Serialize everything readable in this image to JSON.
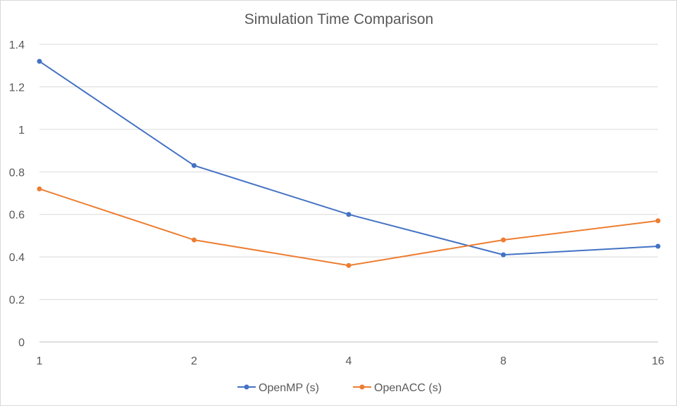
{
  "chart_data": {
    "type": "line",
    "title": "Simulation Time Comparison",
    "xlabel": "",
    "ylabel": "",
    "categories": [
      "1",
      "2",
      "4",
      "8",
      "16"
    ],
    "series": [
      {
        "name": "OpenMP (s)",
        "color": "#4472c4",
        "values": [
          1.32,
          0.83,
          0.6,
          0.41,
          0.45
        ]
      },
      {
        "name": "OpenACC (s)",
        "color": "#ed7d31",
        "values": [
          0.72,
          0.48,
          0.36,
          0.48,
          0.57
        ]
      }
    ],
    "ylim": [
      0,
      1.4
    ],
    "yticks": [
      "0",
      "0.2",
      "0.4",
      "0.6",
      "0.8",
      "1",
      "1.2",
      "1.4"
    ],
    "ytick_values": [
      0,
      0.2,
      0.4,
      0.6,
      0.8,
      1,
      1.2,
      1.4
    ],
    "grid": true,
    "legend_position": "bottom"
  }
}
